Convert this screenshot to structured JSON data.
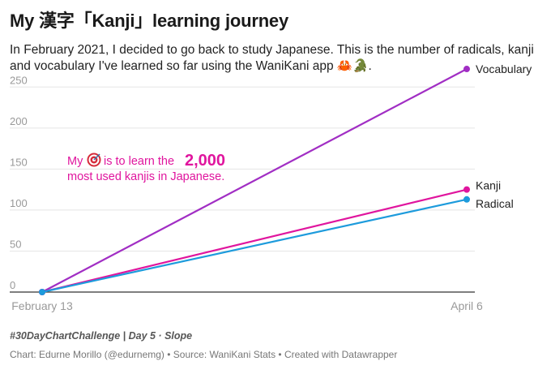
{
  "title": "My 漢字「Kanji」learning journey",
  "subtitle": "In February 2021, I decided to go back to study Japanese. This is the number of radicals, kanji and vocabulary I've learned so far using the WaniKani app 🦀🐊.",
  "annotation": {
    "line1_pre": "My",
    "line1_icon": "dart-target-icon",
    "line1_mid": "is to learn the",
    "line1_big": "2,000",
    "line2": "most used kanjis in Japanese."
  },
  "footer": {
    "tagline": "#30DayChartChallenge | Day 5 · Slope",
    "source": "Chart: Edurne Morillo (@edurnemg) • Source: WaniKani Stats • Created with Datawrapper"
  },
  "colors": {
    "vocabulary": "#a12ec4",
    "kanji": "#e0159e",
    "radical": "#1d9bdc",
    "annotation": "#e0159e",
    "grid": "#e5e5e5",
    "axis_text": "#999999"
  },
  "chart_data": {
    "type": "line",
    "x": [
      "February 13",
      "April 6"
    ],
    "ylim": [
      0,
      275
    ],
    "yticks": [
      0,
      50,
      100,
      150,
      200,
      250
    ],
    "grid": true,
    "series": [
      {
        "name": "Vocabulary",
        "key": "vocabulary",
        "values": [
          0,
          272
        ]
      },
      {
        "name": "Kanji",
        "key": "kanji",
        "values": [
          0,
          125
        ]
      },
      {
        "name": "Radical",
        "key": "radical",
        "values": [
          0,
          113
        ]
      }
    ]
  }
}
